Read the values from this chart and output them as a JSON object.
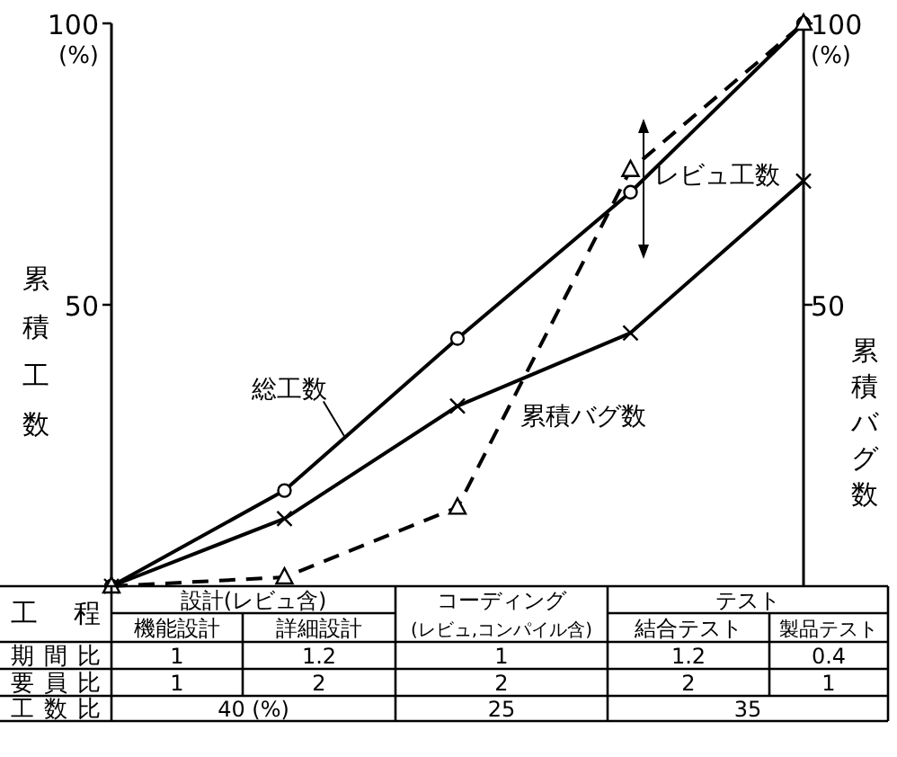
{
  "chart_data": {
    "type": "line",
    "ylabel": "累積工数",
    "y2label": "累積バグ数",
    "categories": [
      null,
      null,
      null,
      null,
      null
    ],
    "ylim": [
      0,
      100
    ],
    "yticks": [
      50,
      100
    ],
    "y2lim": [
      0,
      100
    ],
    "y2ticks": [
      50,
      100
    ],
    "tick_labels": "y",
    "series": [
      {
        "name": "総工数",
        "color": "#000000",
        "values": [
          0,
          17,
          44,
          70,
          100
        ],
        "marker": "circle",
        "line_style": "solid"
      },
      {
        "color": "#000000",
        "values": [
          0,
          12,
          32,
          45,
          72
        ],
        "marker": "cross",
        "line_style": "solid"
      },
      {
        "name": "累積バグ数",
        "color": "#000000",
        "values": [
          0,
          1.6,
          14,
          74,
          100
        ],
        "marker": "triangle",
        "line_style": "dashed"
      }
    ],
    "annotations": [
      "レビュ工数",
      "工程",
      "設計(レビュ含)",
      "コーディング",
      "(レビュ,コンパイル含)",
      "テスト",
      "機能設計",
      "詳細設計",
      "結合テスト",
      "製品テスト",
      "期間比",
      "1",
      "1.2",
      "1",
      "1.2",
      "0.4",
      "要員比",
      "1",
      "2",
      "2",
      "2",
      "1",
      "工数比",
      "40 (%)",
      "25",
      "35",
      "(%)",
      "(%)"
    ]
  }
}
